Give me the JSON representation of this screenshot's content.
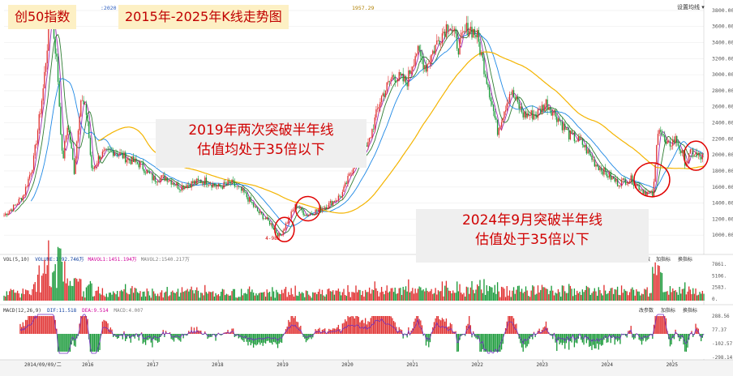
{
  "chart_data": {
    "type": "candlestick",
    "title": "创50指数",
    "subtitle": "2015年-2025年K线走势图",
    "price_axis": {
      "ylim": [
        800,
        3900
      ],
      "ticks": [
        1000,
        1200,
        1400,
        1600,
        1800,
        2000,
        2200,
        2400,
        2600,
        2800,
        3000,
        3200,
        3400,
        3600,
        3800
      ]
    },
    "x_axis": {
      "ticks": [
        "2016",
        "2017",
        "2018",
        "2019",
        "2020",
        "2021",
        "2022",
        "2023",
        "2024",
        "2025"
      ],
      "start_label": "2014/09/09/二"
    },
    "ma_readout": {
      "left": ":2020",
      "right": "1957.29"
    },
    "low_marker": "4-983",
    "price_series": [
      [
        "2014.70",
        1250
      ],
      [
        "2014.85",
        1350
      ],
      [
        "2015.00",
        1500
      ],
      [
        "2015.15",
        1900
      ],
      [
        "2015.30",
        2800
      ],
      [
        "2015.42",
        3850
      ],
      [
        "2015.52",
        3100
      ],
      [
        "2015.60",
        1900
      ],
      [
        "2015.68",
        2400
      ],
      [
        "2015.78",
        1800
      ],
      [
        "2015.88",
        2700
      ],
      [
        "2015.98",
        2500
      ],
      [
        "2016.05",
        1800
      ],
      [
        "2016.18",
        2000
      ],
      [
        "2016.40",
        2050
      ],
      [
        "2016.60",
        1950
      ],
      [
        "2016.80",
        1880
      ],
      [
        "2017.00",
        1700
      ],
      [
        "2017.20",
        1720
      ],
      [
        "2017.40",
        1600
      ],
      [
        "2017.60",
        1650
      ],
      [
        "2017.80",
        1680
      ],
      [
        "2018.00",
        1600
      ],
      [
        "2018.20",
        1650
      ],
      [
        "2018.40",
        1520
      ],
      [
        "2018.60",
        1300
      ],
      [
        "2018.80",
        1150
      ],
      [
        "2018.95",
        980
      ],
      [
        "2019.05",
        1150
      ],
      [
        "2019.20",
        1380
      ],
      [
        "2019.35",
        1250
      ],
      [
        "2019.50",
        1300
      ],
      [
        "2019.70",
        1380
      ],
      [
        "2019.90",
        1500
      ],
      [
        "2020.10",
        1900
      ],
      [
        "2020.30",
        2100
      ],
      [
        "2020.50",
        2700
      ],
      [
        "2020.70",
        3000
      ],
      [
        "2020.90",
        2900
      ],
      [
        "2021.05",
        3300
      ],
      [
        "2021.20",
        3100
      ],
      [
        "2021.40",
        3450
      ],
      [
        "2021.55",
        3650
      ],
      [
        "2021.70",
        3350
      ],
      [
        "2021.85",
        3600
      ],
      [
        "2021.98",
        3500
      ],
      [
        "2022.15",
        2900
      ],
      [
        "2022.30",
        2300
      ],
      [
        "2022.50",
        2800
      ],
      [
        "2022.70",
        2500
      ],
      [
        "2022.90",
        2500
      ],
      [
        "2023.05",
        2650
      ],
      [
        "2023.20",
        2500
      ],
      [
        "2023.40",
        2250
      ],
      [
        "2023.60",
        2150
      ],
      [
        "2023.80",
        1900
      ],
      [
        "2024.00",
        1750
      ],
      [
        "2024.15",
        1650
      ],
      [
        "2024.35",
        1700
      ],
      [
        "2024.55",
        1550
      ],
      [
        "2024.70",
        1500
      ],
      [
        "2024.78",
        2400
      ],
      [
        "2024.90",
        2100
      ],
      [
        "2025.05",
        2200
      ],
      [
        "2025.20",
        1900
      ],
      [
        "2025.30",
        2050
      ],
      [
        "2025.40",
        1970
      ]
    ],
    "ma_lines": [
      {
        "name": "MA5",
        "color": "#9c27b0"
      },
      {
        "name": "MA10",
        "color": "#2e7d32"
      },
      {
        "name": "MA20",
        "color": "#1e88e5"
      },
      {
        "name": "MA120",
        "color": "#f4b400"
      }
    ],
    "volume_panel": {
      "title": "VOL(5,10)",
      "volume": "VOLUME:1092.746万",
      "mavol1": "MAVOL1:1451.194万",
      "mavol2": "MAVOL2:1540.217万",
      "ticks": [
        "7861.",
        "5106.",
        "2583.",
        "0."
      ],
      "buttons": [
        "数",
        "加指标",
        "换指标"
      ]
    },
    "macd_panel": {
      "title": "MACD(12,26,9)",
      "dif": "DIF:11.518",
      "dea": "DEA:9.514",
      "macd": "MACD:4.007",
      "ticks": [
        "288.56",
        "77.37",
        "-102.57",
        "-298.14"
      ],
      "buttons": [
        "改参数",
        "加指标",
        "换指标"
      ]
    },
    "annotations": [
      {
        "text_lines": [
          "2019年两次突破半年线",
          "估值均处于35倍以下"
        ]
      },
      {
        "text_lines": [
          "2024年9月突破半年线",
          "估值处于35倍以下"
        ]
      }
    ]
  },
  "toolbar": {
    "settings_label": "设置均线 ▾"
  }
}
